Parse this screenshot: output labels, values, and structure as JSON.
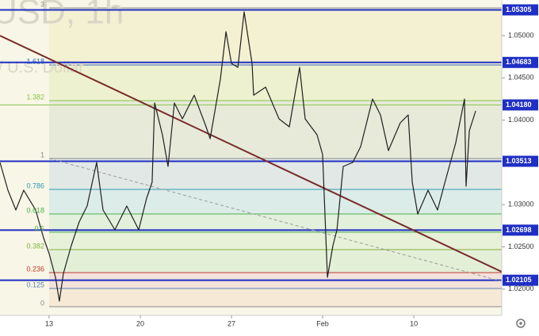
{
  "chart_data": {
    "type": "line",
    "watermark": [
      "USD, 1h",
      "/ U.S. Dollar"
    ],
    "x": [
      9.23,
      9.84,
      10.45,
      11.05,
      11.97,
      12.57,
      13,
      13.49,
      13.79,
      14.1,
      14.7,
      15.31,
      15.92,
      16.65,
      17.14,
      18.05,
      18.96,
      19.88,
      20.49,
      20.91,
      21.1,
      21.7,
      22.13,
      22.62,
      23.23,
      24.14,
      25.05,
      25.36,
      26.15,
      26.58,
      27,
      27.49,
      27.97,
      28.58,
      28.7,
      29.62,
      30.65,
      31.44,
      32.23,
      32.66,
      33.57,
      34,
      34.37,
      34.79,
      35.1,
      35.58,
      36.31,
      36.92,
      37.83,
      38.44,
      39.05,
      39.96,
      40.57,
      40.88,
      41.3,
      42.09,
      42.82,
      43.31,
      44.22,
      44.89,
      45.01,
      45.26,
      45.75
    ],
    "values": [
      1.03499,
      1.03171,
      1.02936,
      1.03171,
      1.02936,
      1.02608,
      1.02421,
      1.02139,
      1.01858,
      1.02186,
      1.02514,
      1.02796,
      1.02983,
      1.03499,
      1.02936,
      1.02702,
      1.02983,
      1.02702,
      1.03077,
      1.03265,
      1.04203,
      1.03827,
      1.03452,
      1.04203,
      1.04015,
      1.04296,
      1.03921,
      1.03781,
      1.04484,
      1.05047,
      1.04672,
      1.04625,
      1.05281,
      1.04672,
      1.04296,
      1.0439,
      1.04015,
      1.03921,
      1.04625,
      1.04015,
      1.03827,
      1.03593,
      1.02139,
      1.02514,
      1.02702,
      1.03452,
      1.03499,
      1.03687,
      1.0425,
      1.04062,
      1.0364,
      1.03968,
      1.04062,
      1.03265,
      1.02889,
      1.03171,
      1.02936,
      1.03218,
      1.03734,
      1.0425,
      1.03218,
      1.03874,
      1.04109
    ],
    "color": "#1e1e1e",
    "xlim": [
      9.23,
      47.75
    ],
    "xticks": [
      13,
      20,
      27,
      {
        "value": 34,
        "label": "Feb"
      },
      {
        "value": 41,
        "label": "10"
      }
    ],
    "ylim": [
      1.01689,
      1.05422
    ],
    "yticks": [
      {
        "value": 1.05,
        "label": "1.05000"
      },
      {
        "value": 1.045,
        "label": "1.04500"
      },
      {
        "value": 1.04,
        "label": "1.04000"
      },
      {
        "value": 1.03,
        "label": "1.03000"
      },
      {
        "value": 1.025,
        "label": "1.02500"
      },
      {
        "value": 1.02,
        "label": "1.02000"
      }
    ],
    "levels": [
      1.05305,
      1.04683,
      {
        "value": 1.0418,
        "label": "1.04180"
      },
      1.03513,
      1.02698,
      1.02105
    ],
    "level_colors": [
      "#1f2fc4",
      "#1f2fc4",
      "#8bc34a",
      "#1f2fc4",
      "#1f2fc4",
      "#1f2fc4"
    ],
    "fib_levels": [
      {
        "ratio": 0,
        "price": 1.01792,
        "color": "#8a8a8a"
      },
      {
        "ratio": 0.125,
        "price": 1.02008,
        "color": "#5a7fb0"
      },
      {
        "ratio": 0.236,
        "price": 1.02195,
        "color": "#c0392b"
      },
      {
        "ratio": 0.382,
        "price": 1.02467,
        "color": "#7fb33a"
      },
      {
        "ratio": 0.5,
        "price": 1.02674,
        "color": "#4caf50"
      },
      {
        "ratio": 0.618,
        "price": 1.02889,
        "color": "#4caf50"
      },
      {
        "ratio": 0.786,
        "price": 1.0318,
        "color": "#2a9db0"
      },
      {
        "ratio": 1,
        "price": 1.03546,
        "color": "#8a8a8a"
      },
      {
        "ratio": 1.382,
        "price": 1.04231,
        "color": "#8bc34a"
      },
      {
        "ratio": 1.618,
        "price": 1.04653,
        "color": "#3060c0"
      },
      {
        "ratio": 3,
        "price": 1.05328,
        "color": "#8a8a8a"
      }
    ],
    "fib_fills": [
      "#f6ead6",
      "#f3e1dc",
      "#e4efd8",
      "#e6f1d8",
      "#e2f0dc",
      "#dcece8",
      "#e2e8e6",
      "#e7ead9",
      "#eef1cf",
      "#f4f0d2"
    ]
  }
}
